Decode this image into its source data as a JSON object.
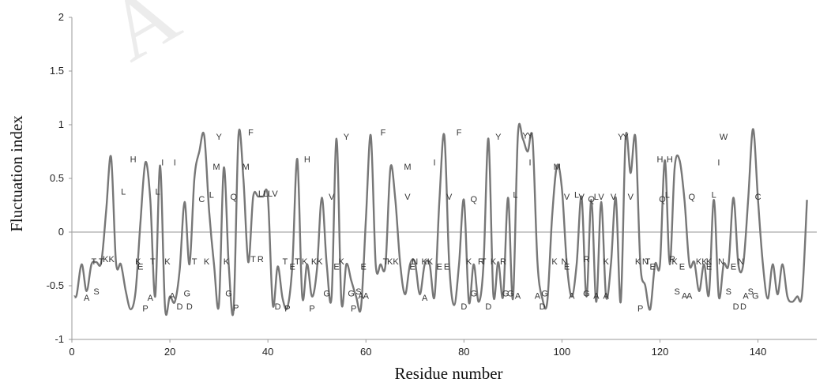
{
  "chart_data": {
    "type": "line",
    "title": "",
    "xlabel": "Residue number",
    "ylabel": "Fluctuation index",
    "xlim": [
      0,
      152
    ],
    "ylim": [
      -1,
      2
    ],
    "xticks": [
      0,
      20,
      40,
      60,
      80,
      100,
      120,
      140
    ],
    "yticks": [
      -1,
      -0.5,
      0,
      0.5,
      1,
      1.5,
      2
    ],
    "ytick_labels": [
      "-1",
      "-0.5",
      "0",
      "0.5",
      "1",
      "1.5",
      "2"
    ],
    "grid": false,
    "legend": "none",
    "watermark": "A",
    "line_color": "#777777",
    "baseline_color": "#aaaaaa",
    "series": [
      {
        "values": [
          [
            0.5,
            -0.6
          ],
          [
            1,
            -0.58
          ],
          [
            2,
            -0.3
          ],
          [
            3,
            -0.55
          ],
          [
            4,
            -0.3
          ],
          [
            5,
            -0.28
          ],
          [
            6,
            -0.28
          ],
          [
            7,
            0.2
          ],
          [
            8,
            0.7
          ],
          [
            9,
            -0.28
          ],
          [
            10,
            -0.3
          ],
          [
            11,
            -0.55
          ],
          [
            12,
            -0.72
          ],
          [
            13,
            -0.55
          ],
          [
            14,
            0.1
          ],
          [
            15,
            0.65
          ],
          [
            16,
            0.3
          ],
          [
            17,
            -0.6
          ],
          [
            18,
            0.62
          ],
          [
            19,
            -0.7
          ],
          [
            20,
            -0.6
          ],
          [
            21,
            -0.65
          ],
          [
            22,
            -0.35
          ],
          [
            23,
            0.28
          ],
          [
            24,
            -0.3
          ],
          [
            25,
            0.5
          ],
          [
            26,
            0.75
          ],
          [
            27,
            0.9
          ],
          [
            28,
            0.2
          ],
          [
            29,
            -0.3
          ],
          [
            30,
            -0.68
          ],
          [
            31,
            0.6
          ],
          [
            32,
            -0.3
          ],
          [
            33,
            -0.72
          ],
          [
            34,
            0.9
          ],
          [
            35,
            0.5
          ],
          [
            36,
            -0.28
          ],
          [
            37,
            0.33
          ],
          [
            38,
            0.33
          ],
          [
            39,
            0.33
          ],
          [
            40,
            0.32
          ],
          [
            41,
            -0.68
          ],
          [
            42,
            -0.32
          ],
          [
            43,
            -0.62
          ],
          [
            44,
            -0.7
          ],
          [
            45,
            -0.3
          ],
          [
            46,
            0.68
          ],
          [
            47,
            -0.6
          ],
          [
            48,
            -0.3
          ],
          [
            49,
            -0.6
          ],
          [
            50,
            -0.35
          ],
          [
            51,
            0.32
          ],
          [
            52,
            -0.3
          ],
          [
            53,
            -0.6
          ],
          [
            54,
            0.87
          ],
          [
            55,
            -0.65
          ],
          [
            56,
            -0.3
          ],
          [
            57,
            -0.45
          ],
          [
            58,
            -0.6
          ],
          [
            59,
            -0.7
          ],
          [
            60,
            0.12
          ],
          [
            61,
            0.9
          ],
          [
            62,
            -0.3
          ],
          [
            63,
            -0.3
          ],
          [
            64,
            -0.3
          ],
          [
            65,
            0.6
          ],
          [
            66,
            0.3
          ],
          [
            67,
            -0.3
          ],
          [
            68,
            -0.58
          ],
          [
            69,
            -0.3
          ],
          [
            70,
            -0.28
          ],
          [
            71,
            -0.58
          ],
          [
            72,
            -0.3
          ],
          [
            73,
            -0.3
          ],
          [
            74,
            -0.6
          ],
          [
            75,
            0.3
          ],
          [
            76,
            0.9
          ],
          [
            77,
            -0.3
          ],
          [
            78,
            -0.68
          ],
          [
            79,
            -0.3
          ],
          [
            80,
            0.3
          ],
          [
            81,
            -0.65
          ],
          [
            82,
            -0.3
          ],
          [
            83,
            -0.65
          ],
          [
            84,
            -0.3
          ],
          [
            85,
            0.87
          ],
          [
            86,
            -0.58
          ],
          [
            87,
            -0.28
          ],
          [
            88,
            -0.6
          ],
          [
            89,
            0.32
          ],
          [
            90,
            -0.62
          ],
          [
            91,
            0.9
          ],
          [
            92,
            0.87
          ],
          [
            93,
            0.75
          ],
          [
            94,
            0.87
          ],
          [
            95,
            -0.28
          ],
          [
            96,
            -0.62
          ],
          [
            97,
            -0.65
          ],
          [
            98,
            0.15
          ],
          [
            99,
            0.62
          ],
          [
            100,
            0.4
          ],
          [
            101,
            -0.3
          ],
          [
            102,
            -0.6
          ],
          [
            103,
            -0.3
          ],
          [
            104,
            0.33
          ],
          [
            105,
            -0.6
          ],
          [
            106,
            0.3
          ],
          [
            107,
            -0.65
          ],
          [
            108,
            0.28
          ],
          [
            109,
            -0.6
          ],
          [
            110,
            -0.3
          ],
          [
            111,
            0.32
          ],
          [
            112,
            -0.65
          ],
          [
            113,
            0.88
          ],
          [
            114,
            0.55
          ],
          [
            115,
            0.88
          ],
          [
            116,
            -0.3
          ],
          [
            117,
            -0.5
          ],
          [
            118,
            -0.72
          ],
          [
            119,
            -0.3
          ],
          [
            120,
            -0.3
          ],
          [
            121,
            0.67
          ],
          [
            122,
            -0.3
          ],
          [
            123,
            0.6
          ],
          [
            124,
            0.67
          ],
          [
            125,
            0.3
          ],
          [
            126,
            -0.3
          ],
          [
            127,
            -0.28
          ],
          [
            128,
            -0.55
          ],
          [
            129,
            -0.3
          ],
          [
            130,
            -0.58
          ],
          [
            131,
            0.3
          ],
          [
            132,
            -0.6
          ],
          [
            133,
            -0.3
          ],
          [
            134,
            -0.3
          ],
          [
            135,
            0.32
          ],
          [
            136,
            -0.3
          ],
          [
            137,
            -0.3
          ],
          [
            138,
            0.3
          ],
          [
            139,
            0.96
          ],
          [
            140,
            0.3
          ],
          [
            141,
            -0.3
          ],
          [
            142,
            -0.62
          ],
          [
            143,
            -0.3
          ],
          [
            144,
            -0.58
          ],
          [
            145,
            -0.3
          ],
          [
            146,
            -0.6
          ],
          [
            147,
            -0.65
          ],
          [
            148,
            -0.6
          ],
          [
            149,
            -0.58
          ],
          [
            150,
            0.3
          ]
        ]
      }
    ],
    "residue_labels": [
      {
        "x": 3,
        "y": -0.64,
        "t": "A"
      },
      {
        "x": 5,
        "y": -0.58,
        "t": "S"
      },
      {
        "x": 4.5,
        "y": -0.3,
        "t": "T"
      },
      {
        "x": 6,
        "y": -0.3,
        "t": "T"
      },
      {
        "x": 7.5,
        "y": -0.28,
        "t": "KK"
      },
      {
        "x": 10.5,
        "y": 0.35,
        "t": "L"
      },
      {
        "x": 12.5,
        "y": 0.65,
        "t": "H"
      },
      {
        "x": 13.5,
        "y": -0.3,
        "t": "K"
      },
      {
        "x": 14,
        "y": -0.35,
        "t": "E"
      },
      {
        "x": 15,
        "y": -0.74,
        "t": "P"
      },
      {
        "x": 16,
        "y": -0.64,
        "t": "A"
      },
      {
        "x": 16.5,
        "y": -0.3,
        "t": "T"
      },
      {
        "x": 17.5,
        "y": 0.35,
        "t": "L"
      },
      {
        "x": 18.5,
        "y": 0.62,
        "t": "I"
      },
      {
        "x": 19.5,
        "y": -0.3,
        "t": "K"
      },
      {
        "x": 20.5,
        "y": -0.62,
        "t": "A"
      },
      {
        "x": 21,
        "y": 0.62,
        "t": "I"
      },
      {
        "x": 22,
        "y": -0.72,
        "t": "D"
      },
      {
        "x": 23.5,
        "y": -0.6,
        "t": "G"
      },
      {
        "x": 24,
        "y": -0.72,
        "t": "D"
      },
      {
        "x": 25,
        "y": -0.3,
        "t": "T"
      },
      {
        "x": 26.5,
        "y": 0.28,
        "t": "C"
      },
      {
        "x": 27.5,
        "y": -0.3,
        "t": "K"
      },
      {
        "x": 28.5,
        "y": 0.32,
        "t": "L"
      },
      {
        "x": 29.5,
        "y": 0.58,
        "t": "M"
      },
      {
        "x": 30,
        "y": 0.86,
        "t": "Y"
      },
      {
        "x": 31.5,
        "y": -0.3,
        "t": "K"
      },
      {
        "x": 32,
        "y": -0.6,
        "t": "G"
      },
      {
        "x": 33,
        "y": 0.3,
        "t": "Q"
      },
      {
        "x": 33.5,
        "y": -0.73,
        "t": "P"
      },
      {
        "x": 35.5,
        "y": 0.58,
        "t": "M"
      },
      {
        "x": 36.5,
        "y": 0.9,
        "t": "F"
      },
      {
        "x": 37,
        "y": -0.28,
        "t": "T"
      },
      {
        "x": 38.5,
        "y": -0.28,
        "t": "R"
      },
      {
        "x": 39,
        "y": 0.33,
        "t": "LL"
      },
      {
        "x": 41,
        "y": 0.33,
        "t": "LV"
      },
      {
        "x": 42,
        "y": -0.72,
        "t": "D"
      },
      {
        "x": 43.5,
        "y": -0.3,
        "t": "T"
      },
      {
        "x": 44,
        "y": -0.74,
        "t": "P"
      },
      {
        "x": 45,
        "y": -0.35,
        "t": "E"
      },
      {
        "x": 46,
        "y": -0.3,
        "t": "T"
      },
      {
        "x": 47.5,
        "y": -0.3,
        "t": "K"
      },
      {
        "x": 48,
        "y": 0.65,
        "t": "H"
      },
      {
        "x": 49,
        "y": -0.74,
        "t": "P"
      },
      {
        "x": 50,
        "y": -0.3,
        "t": "KK"
      },
      {
        "x": 52,
        "y": -0.6,
        "t": "G"
      },
      {
        "x": 53,
        "y": 0.3,
        "t": "V"
      },
      {
        "x": 54,
        "y": -0.35,
        "t": "E"
      },
      {
        "x": 55,
        "y": -0.3,
        "t": "K"
      },
      {
        "x": 56,
        "y": 0.86,
        "t": "Y"
      },
      {
        "x": 57,
        "y": -0.6,
        "t": "G"
      },
      {
        "x": 57.5,
        "y": -0.74,
        "t": "P"
      },
      {
        "x": 58.5,
        "y": -0.58,
        "t": "S"
      },
      {
        "x": 59,
        "y": -0.62,
        "t": "A"
      },
      {
        "x": 60,
        "y": -0.62,
        "t": "A"
      },
      {
        "x": 59.5,
        "y": -0.35,
        "t": "E"
      },
      {
        "x": 63.5,
        "y": 0.9,
        "t": "F"
      },
      {
        "x": 64,
        "y": -0.3,
        "t": "T"
      },
      {
        "x": 65.5,
        "y": -0.3,
        "t": "KK"
      },
      {
        "x": 68.5,
        "y": 0.3,
        "t": "V"
      },
      {
        "x": 68.5,
        "y": 0.58,
        "t": "M"
      },
      {
        "x": 69.5,
        "y": -0.35,
        "t": "E"
      },
      {
        "x": 70,
        "y": -0.3,
        "t": "N"
      },
      {
        "x": 72,
        "y": -0.64,
        "t": "A"
      },
      {
        "x": 72.5,
        "y": -0.3,
        "t": "KK"
      },
      {
        "x": 74,
        "y": 0.62,
        "t": "I"
      },
      {
        "x": 75,
        "y": -0.35,
        "t": "E"
      },
      {
        "x": 76.5,
        "y": -0.35,
        "t": "E"
      },
      {
        "x": 77,
        "y": 0.3,
        "t": "V"
      },
      {
        "x": 79,
        "y": 0.9,
        "t": "F"
      },
      {
        "x": 80,
        "y": -0.72,
        "t": "D"
      },
      {
        "x": 81,
        "y": -0.3,
        "t": "K"
      },
      {
        "x": 82,
        "y": -0.6,
        "t": "G"
      },
      {
        "x": 82,
        "y": 0.28,
        "t": "Q"
      },
      {
        "x": 83.5,
        "y": -0.3,
        "t": "R"
      },
      {
        "x": 84,
        "y": -0.3,
        "t": "T"
      },
      {
        "x": 85,
        "y": -0.72,
        "t": "D"
      },
      {
        "x": 86,
        "y": -0.3,
        "t": "K"
      },
      {
        "x": 87,
        "y": 0.86,
        "t": "Y"
      },
      {
        "x": 88,
        "y": -0.3,
        "t": "R"
      },
      {
        "x": 88.5,
        "y": -0.6,
        "t": "G"
      },
      {
        "x": 89.5,
        "y": -0.6,
        "t": "G"
      },
      {
        "x": 90.5,
        "y": 0.32,
        "t": "L"
      },
      {
        "x": 91,
        "y": -0.62,
        "t": "A"
      },
      {
        "x": 92.5,
        "y": 0.87,
        "t": "Y"
      },
      {
        "x": 93.5,
        "y": 0.87,
        "t": "Y"
      },
      {
        "x": 93.5,
        "y": 0.62,
        "t": "I"
      },
      {
        "x": 95,
        "y": -0.62,
        "t": "A"
      },
      {
        "x": 96,
        "y": -0.72,
        "t": "D"
      },
      {
        "x": 96.5,
        "y": -0.6,
        "t": "G"
      },
      {
        "x": 98.5,
        "y": -0.3,
        "t": "K"
      },
      {
        "x": 99,
        "y": 0.58,
        "t": "M"
      },
      {
        "x": 101,
        "y": 0.3,
        "t": "V"
      },
      {
        "x": 100.5,
        "y": -0.3,
        "t": "N"
      },
      {
        "x": 101,
        "y": -0.35,
        "t": "E"
      },
      {
        "x": 102,
        "y": -0.62,
        "t": "A"
      },
      {
        "x": 103,
        "y": 0.32,
        "t": "L"
      },
      {
        "x": 104,
        "y": 0.3,
        "t": "V"
      },
      {
        "x": 105,
        "y": -0.6,
        "t": "G"
      },
      {
        "x": 105,
        "y": -0.28,
        "t": "R"
      },
      {
        "x": 106,
        "y": 0.28,
        "t": "Q"
      },
      {
        "x": 107,
        "y": 0.3,
        "t": "L"
      },
      {
        "x": 107,
        "y": -0.62,
        "t": "A"
      },
      {
        "x": 108,
        "y": 0.3,
        "t": "V"
      },
      {
        "x": 109,
        "y": -0.3,
        "t": "K"
      },
      {
        "x": 109,
        "y": -0.62,
        "t": "A"
      },
      {
        "x": 110.5,
        "y": 0.3,
        "t": "V"
      },
      {
        "x": 112,
        "y": 0.86,
        "t": "Y"
      },
      {
        "x": 113,
        "y": 0.86,
        "t": "Y"
      },
      {
        "x": 114,
        "y": 0.3,
        "t": "V"
      },
      {
        "x": 115.5,
        "y": -0.3,
        "t": "K"
      },
      {
        "x": 116,
        "y": -0.74,
        "t": "P"
      },
      {
        "x": 117,
        "y": -0.3,
        "t": "N"
      },
      {
        "x": 117.5,
        "y": -0.3,
        "t": "T"
      },
      {
        "x": 118.5,
        "y": -0.35,
        "t": "E"
      },
      {
        "x": 120,
        "y": 0.65,
        "t": "H"
      },
      {
        "x": 122,
        "y": 0.65,
        "t": "H"
      },
      {
        "x": 120.5,
        "y": 0.28,
        "t": "Q"
      },
      {
        "x": 121.5,
        "y": 0.32,
        "t": "L"
      },
      {
        "x": 122.5,
        "y": -0.28,
        "t": "R"
      },
      {
        "x": 123,
        "y": -0.3,
        "t": "K"
      },
      {
        "x": 123.5,
        "y": -0.58,
        "t": "S"
      },
      {
        "x": 124.5,
        "y": -0.35,
        "t": "E"
      },
      {
        "x": 125,
        "y": -0.62,
        "t": "A"
      },
      {
        "x": 126,
        "y": -0.62,
        "t": "A"
      },
      {
        "x": 126.5,
        "y": 0.3,
        "t": "Q"
      },
      {
        "x": 128.5,
        "y": -0.3,
        "t": "KK"
      },
      {
        "x": 130,
        "y": -0.3,
        "t": "K"
      },
      {
        "x": 130,
        "y": -0.35,
        "t": "E"
      },
      {
        "x": 131,
        "y": 0.32,
        "t": "L"
      },
      {
        "x": 132,
        "y": 0.62,
        "t": "I"
      },
      {
        "x": 132.5,
        "y": -0.3,
        "t": "N"
      },
      {
        "x": 133,
        "y": 0.86,
        "t": "W"
      },
      {
        "x": 134,
        "y": -0.58,
        "t": "S"
      },
      {
        "x": 135,
        "y": -0.35,
        "t": "E"
      },
      {
        "x": 135.5,
        "y": -0.72,
        "t": "D"
      },
      {
        "x": 136.5,
        "y": -0.3,
        "t": "N"
      },
      {
        "x": 137,
        "y": -0.72,
        "t": "D"
      },
      {
        "x": 137.5,
        "y": -0.62,
        "t": "A"
      },
      {
        "x": 138.5,
        "y": -0.58,
        "t": "S"
      },
      {
        "x": 139.5,
        "y": -0.62,
        "t": "G"
      },
      {
        "x": 140,
        "y": 0.3,
        "t": "C"
      }
    ]
  }
}
